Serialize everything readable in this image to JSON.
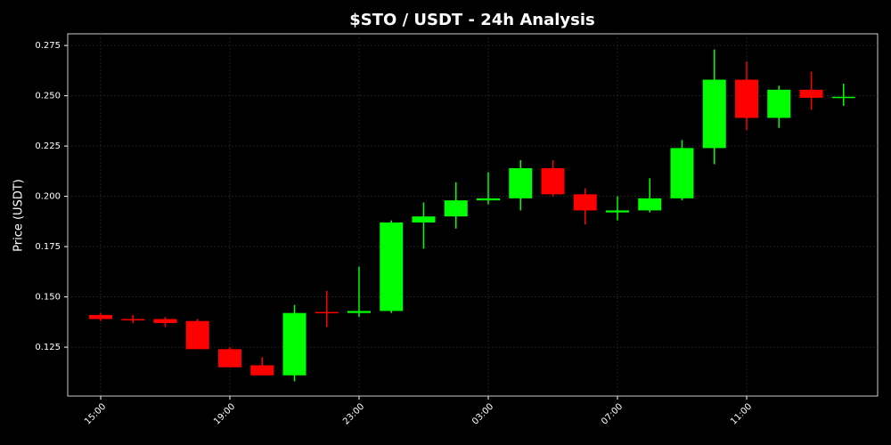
{
  "chart_data": {
    "type": "candlestick",
    "title": "$STO / USDT - 24h Analysis",
    "y_label": "Price (USDT)",
    "categories": [
      "15:00",
      null,
      null,
      null,
      "19:00",
      null,
      null,
      null,
      "23:00",
      null,
      null,
      null,
      "03:00",
      null,
      null,
      null,
      "07:00",
      null,
      null,
      null,
      "11:00",
      null,
      null,
      null
    ],
    "open": [
      0.141,
      0.139,
      0.139,
      0.138,
      0.124,
      0.116,
      0.111,
      0.1425,
      0.142,
      0.143,
      0.187,
      0.19,
      0.198,
      0.199,
      0.214,
      0.201,
      0.192,
      0.193,
      0.199,
      0.224,
      0.258,
      0.239,
      0.253,
      0.249
    ],
    "high": [
      0.142,
      0.141,
      0.14,
      0.139,
      0.125,
      0.12,
      0.146,
      0.153,
      0.165,
      0.188,
      0.197,
      0.207,
      0.212,
      0.218,
      0.218,
      0.204,
      0.2,
      0.209,
      0.228,
      0.273,
      0.267,
      0.255,
      0.262,
      0.256
    ],
    "low": [
      0.138,
      0.137,
      0.135,
      0.124,
      0.115,
      0.111,
      0.108,
      0.135,
      0.14,
      0.142,
      0.174,
      0.184,
      0.196,
      0.193,
      0.2,
      0.186,
      0.188,
      0.192,
      0.198,
      0.216,
      0.233,
      0.234,
      0.243,
      0.245
    ],
    "close": [
      0.139,
      0.1385,
      0.137,
      0.124,
      0.115,
      0.111,
      0.142,
      0.142,
      0.143,
      0.187,
      0.19,
      0.198,
      0.199,
      0.214,
      0.201,
      0.193,
      0.193,
      0.199,
      0.224,
      0.258,
      0.239,
      0.253,
      0.249,
      0.2495
    ],
    "up_color": "#00ff00",
    "down_color": "#ff0000",
    "ylim": [
      0.1007,
      0.2808
    ],
    "yticks": [
      0.125,
      {
        "value": 0.15,
        "label": "0.150"
      },
      0.175,
      {
        "value": 0.2,
        "label": "0.200"
      },
      0.225,
      {
        "value": 0.25,
        "label": "0.250"
      },
      0.275
    ],
    "grid": true
  }
}
